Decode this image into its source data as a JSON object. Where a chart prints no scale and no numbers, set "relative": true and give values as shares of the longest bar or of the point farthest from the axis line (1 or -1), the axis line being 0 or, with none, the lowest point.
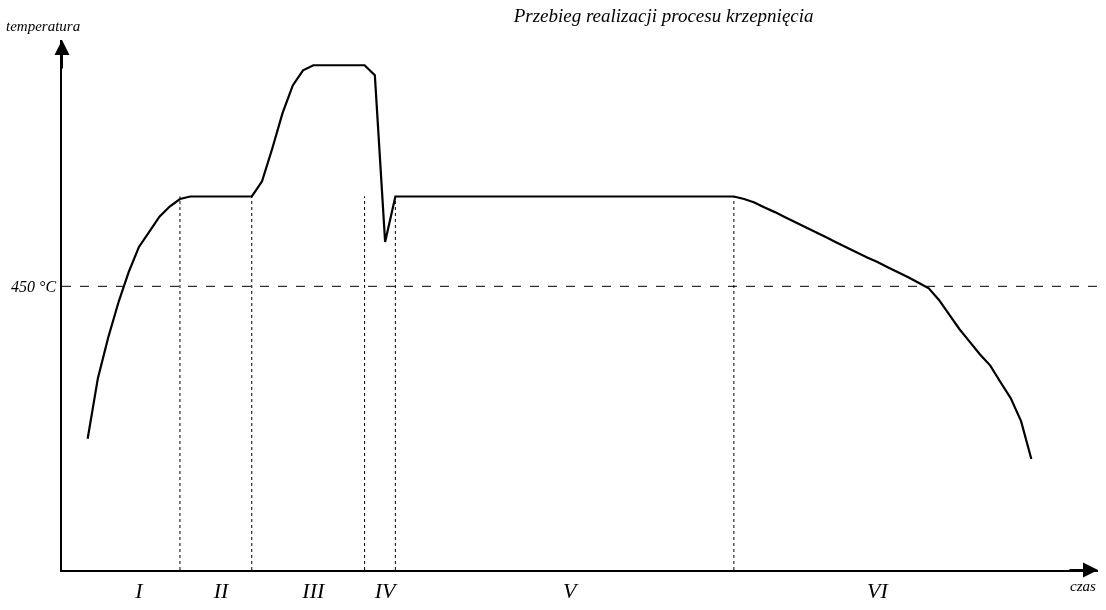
{
  "chart_data": {
    "type": "line",
    "relative": true,
    "title": "Przebieg realizacji procesu krzepnięcia",
    "xlabel": "czas",
    "ylabel": "temperatura",
    "grid": false,
    "marker": "none",
    "line_style": "solid",
    "tick_labels": "x",
    "categories": [
      null,
      null,
      null,
      null,
      null,
      null,
      null,
      "I",
      null,
      null,
      null,
      null,
      null,
      null,
      null,
      "II",
      null,
      null,
      null,
      null,
      null,
      null,
      null,
      null,
      "III",
      null,
      null,
      null,
      null,
      null,
      null,
      "IV",
      null,
      null,
      null,
      null,
      null,
      null,
      null,
      null,
      null,
      null,
      null,
      null,
      null,
      null,
      null,
      null,
      null,
      "V",
      null,
      null,
      null,
      null,
      null,
      null,
      null,
      null,
      null,
      null,
      null,
      null,
      null,
      null,
      null,
      null,
      null,
      null,
      null,
      null,
      null,
      null,
      null,
      null,
      null,
      null,
      null,
      null,
      null,
      "VI",
      null,
      null,
      null,
      null,
      null,
      null,
      null,
      null,
      null,
      null,
      null,
      null,
      null,
      null,
      null,
      null,
      null,
      null,
      null,
      null,
      null
    ],
    "series": [
      {
        "color": "#000000",
        "values": [
          null,
          null,
          0.26,
          0.38,
          0.46,
          0.53,
          0.59,
          0.64,
          0.67,
          0.7,
          0.72,
          0.735,
          0.74,
          0.74,
          0.74,
          0.74,
          0.74,
          0.74,
          0.74,
          0.77,
          0.835,
          0.905,
          0.96,
          0.99,
          1,
          1,
          1,
          1,
          1,
          1,
          0.98,
          0.65,
          0.74,
          0.74,
          0.74,
          0.74,
          0.74,
          0.74,
          0.74,
          0.74,
          0.74,
          0.74,
          0.74,
          0.74,
          0.74,
          0.74,
          0.74,
          0.74,
          0.74,
          0.74,
          0.74,
          0.74,
          0.74,
          0.74,
          0.74,
          0.74,
          0.74,
          0.74,
          0.74,
          0.74,
          0.74,
          0.74,
          0.74,
          0.74,
          0.74,
          0.74,
          0.735,
          0.728,
          0.718,
          0.709,
          0.699,
          0.689,
          0.679,
          0.669,
          0.659,
          0.649,
          0.639,
          0.629,
          0.619,
          0.61,
          0.6,
          0.59,
          0.58,
          0.569,
          0.558,
          0.535,
          0.506,
          0.477,
          0.452,
          0.427,
          0.405,
          0.372,
          0.34,
          0.295,
          0.22,
          null,
          null,
          null,
          null,
          null,
          null
        ]
      }
    ],
    "ref_lines": [
      {
        "axis": "y",
        "value": 0.562,
        "label": "450 °C",
        "line_style": "dashed",
        "color": "#000000"
      }
    ]
  }
}
